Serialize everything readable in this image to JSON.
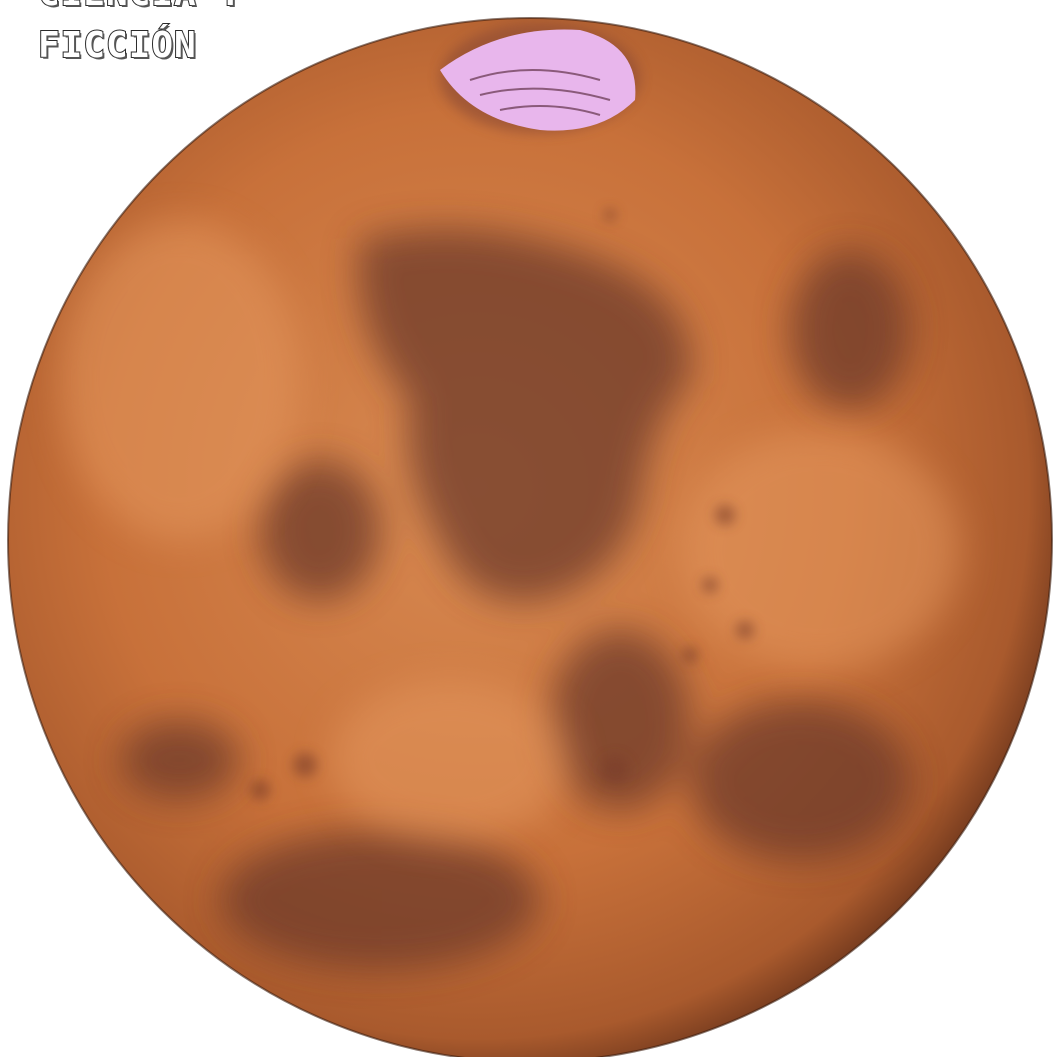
{
  "header": {
    "line1": "CIENCIA Y",
    "line2": "FICCIÓN"
  }
}
